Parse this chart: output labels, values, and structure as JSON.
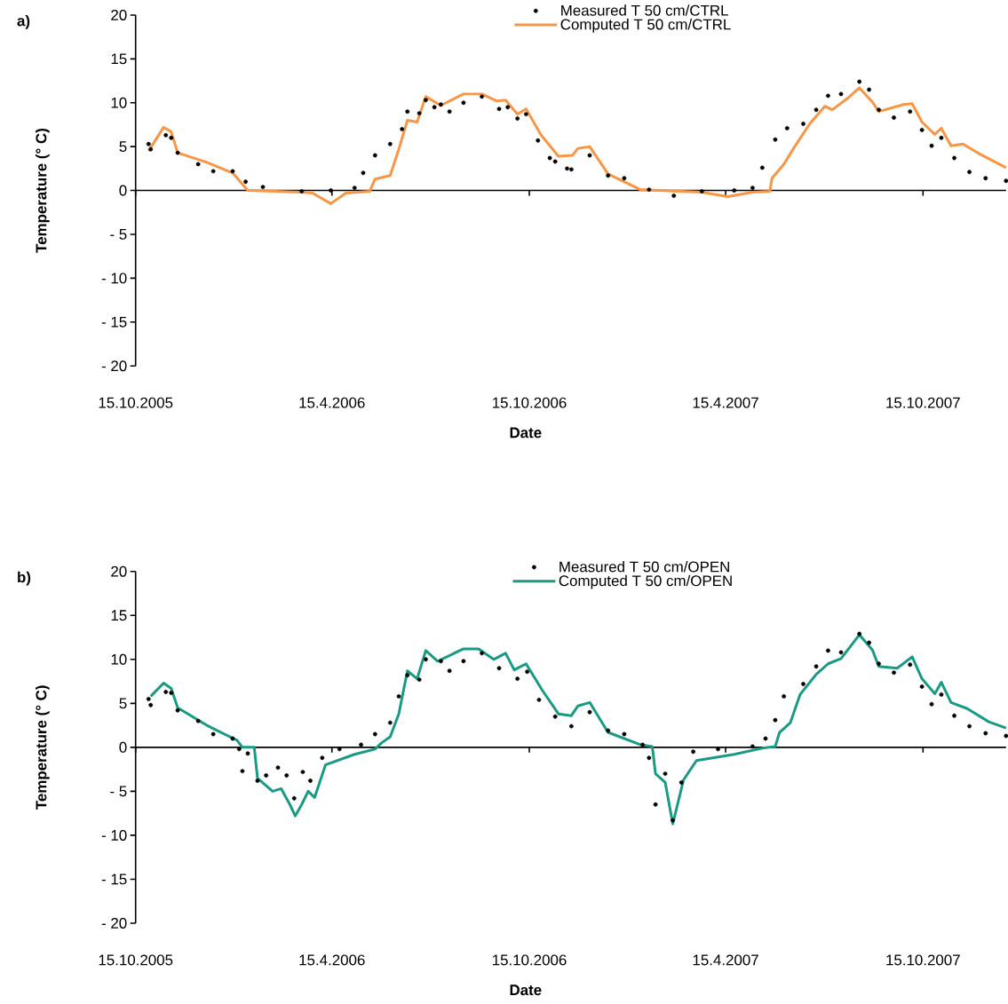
{
  "chart_data": [
    {
      "type": "line",
      "annotations": [
        "a)"
      ],
      "xlabel": "Date",
      "ylabel": "Temperature (° C)",
      "xlim": [
        "2005-10-15",
        "2007-12-31"
      ],
      "xticks": [
        {
          "value": "2005-10-15",
          "label": "15.10.2005"
        },
        {
          "value": "2006-04-15",
          "label": "15.4.2006"
        },
        {
          "value": "2006-10-15",
          "label": "15.10.2006"
        },
        {
          "value": "2007-04-15",
          "label": "15.4.2007"
        },
        {
          "value": "2007-10-15",
          "label": "15.10.2007"
        }
      ],
      "ylim": [
        -20,
        20
      ],
      "yticks": [
        {
          "value": -20,
          "label": "- 20"
        },
        {
          "value": -15,
          "label": "- 15"
        },
        {
          "value": -10,
          "label": "- 10"
        },
        {
          "value": -5,
          "label": "- 5"
        },
        0,
        5,
        10,
        15,
        20
      ],
      "legend": "top",
      "series": [
        {
          "name": "Measured T 50 cm/CTRL",
          "type": "scatter",
          "marker": "circle",
          "color": "#000000",
          "x": [
            "2005-10-27",
            "2005-10-29",
            "2005-11-12",
            "2005-11-17",
            "2005-11-23",
            "2005-12-12",
            "2005-12-26",
            "2006-01-13",
            "2006-01-25",
            "2006-02-10",
            "2006-03-18",
            "2006-04-14",
            "2006-05-06",
            "2006-05-14",
            "2006-05-25",
            "2006-06-08",
            "2006-06-19",
            "2006-06-24",
            "2006-07-05",
            "2006-07-11",
            "2006-07-19",
            "2006-07-25",
            "2006-08-02",
            "2006-08-15",
            "2006-09-01",
            "2006-09-17",
            "2006-09-25",
            "2006-10-04",
            "2006-10-12",
            "2006-10-23",
            "2006-11-03",
            "2006-11-08",
            "2006-11-19",
            "2006-11-23",
            "2006-12-10",
            "2006-12-27",
            "2007-01-11",
            "2007-02-03",
            "2007-02-26",
            "2007-03-24",
            "2007-04-23",
            "2007-05-10",
            "2007-05-19",
            "2007-05-31",
            "2007-06-11",
            "2007-06-26",
            "2007-07-08",
            "2007-07-19",
            "2007-07-31",
            "2007-08-17",
            "2007-08-26",
            "2007-09-04",
            "2007-09-18",
            "2007-10-03",
            "2007-10-14",
            "2007-10-23",
            "2007-11-01",
            "2007-11-13",
            "2007-11-27",
            "2007-12-12",
            "2007-12-31"
          ],
          "values": [
            5.3,
            4.7,
            6.3,
            6.0,
            4.3,
            3.0,
            2.2,
            2.2,
            1.0,
            0.4,
            -0.1,
            0,
            0.3,
            2.0,
            4.0,
            5.3,
            7.0,
            9.0,
            8.8,
            10.3,
            9.5,
            9.8,
            9.0,
            10.0,
            10.7,
            9.3,
            9.5,
            8.2,
            8.7,
            5.7,
            3.7,
            3.3,
            2.5,
            2.4,
            4.0,
            1.7,
            1.4,
            0.1,
            -0.6,
            -0.1,
            0.0,
            0.3,
            2.6,
            5.8,
            7.1,
            7.6,
            9.2,
            10.8,
            11.0,
            12.4,
            11.5,
            9.2,
            8.3,
            9.0,
            6.9,
            5.1,
            6.0,
            3.7,
            2.1,
            1.4,
            1.1
          ]
        },
        {
          "name": "Computed T 50 cm/CTRL",
          "type": "line",
          "color": "#f79646",
          "x": [
            "2005-10-27",
            "2005-11-10",
            "2005-11-17",
            "2005-11-23",
            "2005-12-20",
            "2006-01-13",
            "2006-01-27",
            "2006-03-18",
            "2006-03-28",
            "2006-04-14",
            "2006-04-28",
            "2006-05-20",
            "2006-05-25",
            "2006-06-08",
            "2006-06-16",
            "2006-06-24",
            "2006-07-03",
            "2006-07-11",
            "2006-07-25",
            "2006-08-15",
            "2006-09-01",
            "2006-09-15",
            "2006-09-23",
            "2006-10-04",
            "2006-10-12",
            "2006-10-26",
            "2006-11-11",
            "2006-11-24",
            "2006-11-29",
            "2006-12-10",
            "2006-12-27",
            "2007-01-26",
            "2007-03-24",
            "2007-04-17",
            "2007-05-10",
            "2007-05-26",
            "2007-05-28",
            "2007-06-08",
            "2007-06-17",
            "2007-07-02",
            "2007-07-16",
            "2007-07-23",
            "2007-08-06",
            "2007-08-17",
            "2007-08-29",
            "2007-09-04",
            "2007-09-27",
            "2007-10-05",
            "2007-10-14",
            "2007-10-26",
            "2007-11-01",
            "2007-11-10",
            "2007-11-21",
            "2007-12-06",
            "2007-12-31"
          ],
          "values": [
            4.5,
            7.2,
            6.7,
            4.3,
            3.2,
            2.0,
            0,
            -0.2,
            -0.3,
            -1.5,
            -0.3,
            -0.1,
            1.3,
            1.7,
            4.7,
            8.0,
            7.8,
            10.7,
            9.7,
            11.0,
            11.0,
            10.2,
            10.3,
            8.7,
            9.3,
            6.3,
            3.9,
            4.0,
            4.8,
            5.0,
            1.9,
            0.1,
            -0.2,
            -0.7,
            -0.2,
            -0.1,
            1.4,
            3.0,
            4.8,
            7.6,
            9.6,
            9.2,
            10.5,
            11.7,
            10.1,
            9.0,
            9.8,
            9.9,
            7.8,
            6.4,
            7.1,
            5.1,
            5.3,
            4.2,
            2.6
          ]
        }
      ]
    },
    {
      "type": "line",
      "annotations": [
        "b)"
      ],
      "xlabel": "Date",
      "ylabel": "Temperature (° C)",
      "xlim": [
        "2005-10-15",
        "2007-12-31"
      ],
      "xticks": [
        {
          "value": "2005-10-15",
          "label": "15.10.2005"
        },
        {
          "value": "2006-04-15",
          "label": "15.4.2006"
        },
        {
          "value": "2006-10-15",
          "label": "15.10.2006"
        },
        {
          "value": "2007-04-15",
          "label": "15.4.2007"
        },
        {
          "value": "2007-10-15",
          "label": "15.10.2007"
        }
      ],
      "ylim": [
        -20,
        20
      ],
      "yticks": [
        {
          "value": -20,
          "label": "- 20"
        },
        {
          "value": -15,
          "label": "- 15"
        },
        {
          "value": -10,
          "label": "- 10"
        },
        {
          "value": -5,
          "label": "- 5"
        },
        0,
        5,
        10,
        15,
        20
      ],
      "legend": "top",
      "series": [
        {
          "name": "Measured T 50 cm/OPEN",
          "type": "scatter",
          "marker": "circle",
          "color": "#000000",
          "x": [
            "2005-10-27",
            "2005-10-29",
            "2005-11-12",
            "2005-11-17",
            "2005-11-23",
            "2005-12-12",
            "2005-12-26",
            "2006-01-13",
            "2006-01-19",
            "2006-01-22",
            "2006-01-27",
            "2006-02-05",
            "2006-02-13",
            "2006-02-24",
            "2006-03-04",
            "2006-03-11",
            "2006-03-19",
            "2006-03-26",
            "2006-04-06",
            "2006-04-22",
            "2006-05-12",
            "2006-05-25",
            "2006-06-08",
            "2006-06-16",
            "2006-06-24",
            "2006-07-05",
            "2006-07-11",
            "2006-07-25",
            "2006-08-02",
            "2006-08-15",
            "2006-09-01",
            "2006-09-17",
            "2006-10-04",
            "2006-10-13",
            "2006-10-24",
            "2006-11-08",
            "2006-11-23",
            "2006-12-10",
            "2006-12-27",
            "2007-01-11",
            "2007-01-28",
            "2007-02-03",
            "2007-02-09",
            "2007-02-18",
            "2007-02-25",
            "2007-03-05",
            "2007-03-16",
            "2007-04-08",
            "2007-05-10",
            "2007-05-22",
            "2007-05-31",
            "2007-06-08",
            "2007-06-26",
            "2007-07-08",
            "2007-07-19",
            "2007-07-31",
            "2007-08-17",
            "2007-08-26",
            "2007-09-04",
            "2007-09-18",
            "2007-10-03",
            "2007-10-14",
            "2007-10-23",
            "2007-11-01",
            "2007-11-13",
            "2007-11-27",
            "2007-12-12",
            "2007-12-31"
          ],
          "values": [
            5.5,
            4.8,
            6.3,
            6.2,
            4.2,
            3.0,
            1.5,
            1.0,
            -0.2,
            -2.7,
            -0.7,
            -3.8,
            -3.2,
            -2.3,
            -3.2,
            -5.8,
            -2.8,
            -3.8,
            -1.2,
            -0.2,
            0.3,
            1.5,
            2.8,
            5.8,
            8.2,
            7.7,
            10.0,
            9.8,
            8.7,
            9.8,
            10.7,
            9.0,
            7.8,
            8.6,
            5.4,
            3.5,
            2.4,
            4.0,
            1.9,
            1.5,
            0.3,
            -1.2,
            -6.5,
            -3.0,
            -8.3,
            -4.0,
            -0.5,
            -0.2,
            0.1,
            1.0,
            3.1,
            5.8,
            7.2,
            9.2,
            11.0,
            10.8,
            12.9,
            11.9,
            9.5,
            8.5,
            9.4,
            6.9,
            4.9,
            6.0,
            3.6,
            2.4,
            1.6,
            1.3
          ]
        },
        {
          "name": "Computed T 50 cm/OPEN",
          "type": "line",
          "color": "#1a9a83",
          "x": [
            "2005-10-29",
            "2005-11-10",
            "2005-11-17",
            "2005-11-23",
            "2005-12-20",
            "2006-01-17",
            "2006-01-22",
            "2006-02-02",
            "2006-02-05",
            "2006-02-19",
            "2006-02-27",
            "2006-03-07",
            "2006-03-12",
            "2006-03-18",
            "2006-03-24",
            "2006-03-30",
            "2006-04-09",
            "2006-05-06",
            "2006-05-25",
            "2006-05-31",
            "2006-06-08",
            "2006-06-16",
            "2006-06-24",
            "2006-07-03",
            "2006-07-11",
            "2006-07-22",
            "2006-08-15",
            "2006-08-29",
            "2006-09-12",
            "2006-09-23",
            "2006-10-01",
            "2006-10-12",
            "2006-10-27",
            "2006-11-11",
            "2006-11-23",
            "2006-11-29",
            "2006-12-10",
            "2006-12-27",
            "2007-01-26",
            "2007-02-06",
            "2007-02-09",
            "2007-02-18",
            "2007-02-25",
            "2007-03-07",
            "2007-03-19",
            "2007-04-23",
            "2007-05-19",
            "2007-05-31",
            "2007-06-04",
            "2007-06-14",
            "2007-06-23",
            "2007-07-08",
            "2007-07-19",
            "2007-07-31",
            "2007-08-17",
            "2007-08-29",
            "2007-09-04",
            "2007-09-21",
            "2007-10-05",
            "2007-10-14",
            "2007-10-26",
            "2007-11-01",
            "2007-11-10",
            "2007-11-25",
            "2007-12-15",
            "2007-12-31"
          ],
          "values": [
            5.8,
            7.3,
            6.7,
            4.5,
            2.5,
            0.8,
            0,
            0,
            -3.5,
            -5.0,
            -4.7,
            -6.5,
            -7.8,
            -6.5,
            -5.0,
            -5.7,
            -2.0,
            -0.8,
            -0.2,
            0.5,
            1.2,
            3.8,
            8.7,
            7.8,
            11.0,
            9.8,
            11.2,
            11.2,
            10.0,
            10.7,
            8.8,
            9.5,
            6.5,
            3.8,
            3.6,
            4.7,
            5.1,
            1.7,
            0.3,
            0.1,
            -3.0,
            -4.0,
            -8.7,
            -3.7,
            -1.5,
            -0.8,
            -0.1,
            0.1,
            1.7,
            2.8,
            6.0,
            8.3,
            9.5,
            10.1,
            12.8,
            11.1,
            9.2,
            9.0,
            10.3,
            7.8,
            6.1,
            7.4,
            5.1,
            4.4,
            2.9,
            2.2
          ]
        }
      ]
    }
  ]
}
